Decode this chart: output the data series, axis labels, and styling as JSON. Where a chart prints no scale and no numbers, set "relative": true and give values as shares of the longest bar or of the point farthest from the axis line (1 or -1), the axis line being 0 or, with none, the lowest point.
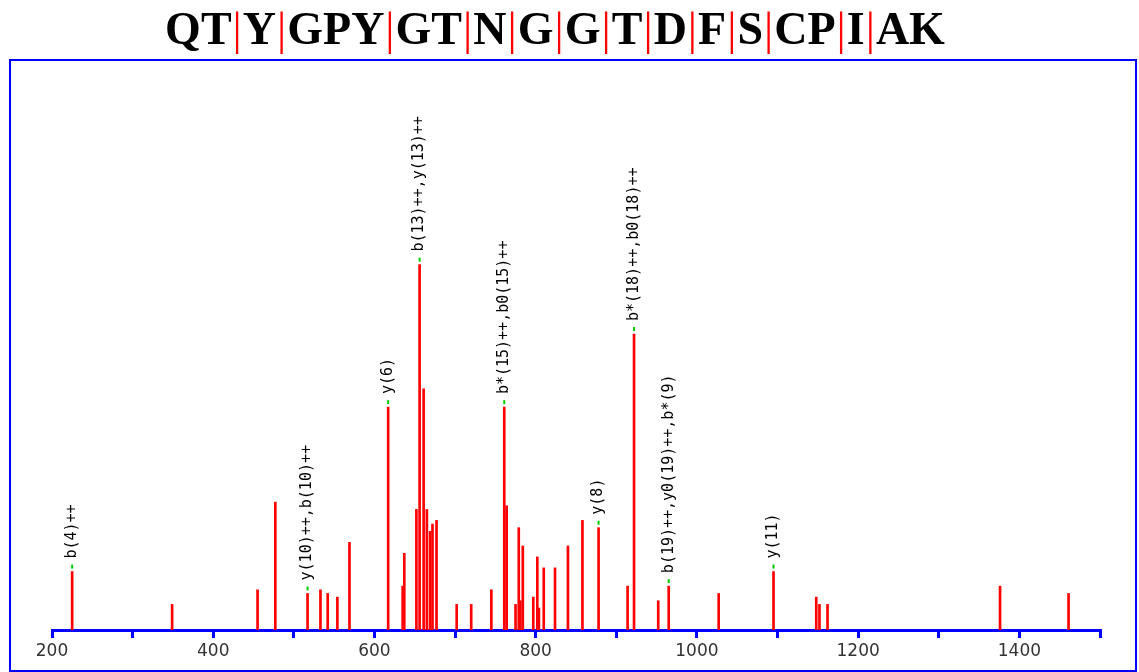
{
  "chart_data": {
    "type": "bar",
    "relative": true,
    "title": "QT|Y|GPY|GT|N|G|G|T|D|F|S|CP|I|AK",
    "x": [
      225,
      349,
      455,
      477,
      517,
      533,
      542,
      554,
      569,
      617,
      635,
      637,
      652,
      656,
      661,
      665,
      669,
      672,
      677,
      702,
      720,
      745,
      761,
      764,
      775,
      779,
      781,
      784,
      797,
      802,
      804,
      810,
      824,
      840,
      858,
      878,
      914,
      922,
      952,
      965,
      1027,
      1095,
      1148,
      1152,
      1162,
      1376,
      1461
    ],
    "values": [
      0.16,
      0.07,
      0.11,
      0.35,
      0.1,
      0.11,
      0.1,
      0.09,
      0.24,
      0.61,
      0.12,
      0.21,
      0.33,
      1,
      0.66,
      0.33,
      0.27,
      0.29,
      0.3,
      0.07,
      0.07,
      0.11,
      0.61,
      0.34,
      0.07,
      0.28,
      0.08,
      0.23,
      0.09,
      0.2,
      0.06,
      0.17,
      0.17,
      0.23,
      0.3,
      0.28,
      0.12,
      0.81,
      0.08,
      0.12,
      0.1,
      0.16,
      0.09,
      0.07,
      0.07,
      0.12,
      0.1
    ],
    "color": "#ff0000",
    "xlim": [
      200,
      1500
    ],
    "xticks": [
      200,
      {
        "value": 300,
        "label": null
      },
      400,
      {
        "value": 500,
        "label": null
      },
      600,
      {
        "value": 700,
        "label": null
      },
      800,
      {
        "value": 900,
        "label": null
      },
      1000,
      {
        "value": 1100,
        "label": null
      },
      1200,
      {
        "value": 1300,
        "label": null
      },
      1400,
      {
        "value": 1500,
        "label": null
      }
    ],
    "grid": false,
    "legend": false,
    "annotations": [
      {
        "text": "b(4)++",
        "x": 225,
        "y": 0.16
      },
      {
        "text": "y(10)++,b(10)++",
        "x": 517,
        "y": 0.1
      },
      {
        "text": "y(6)",
        "x": 617,
        "y": 0.61
      },
      {
        "text": "b(13)++,y(13)++",
        "x": 656,
        "y": 1
      },
      {
        "text": "b*(15)++,b0(15)++",
        "x": 761,
        "y": 0.61
      },
      {
        "text": "y(8)",
        "x": 878,
        "y": 0.28
      },
      {
        "text": "b*(18)++,b0(18)++",
        "x": 922,
        "y": 0.81
      },
      {
        "text": "b(19)++,y0(19)++,b*(9)",
        "x": 965,
        "y": 0.12
      },
      {
        "text": "y(11)",
        "x": 1095,
        "y": 0.16
      }
    ]
  }
}
